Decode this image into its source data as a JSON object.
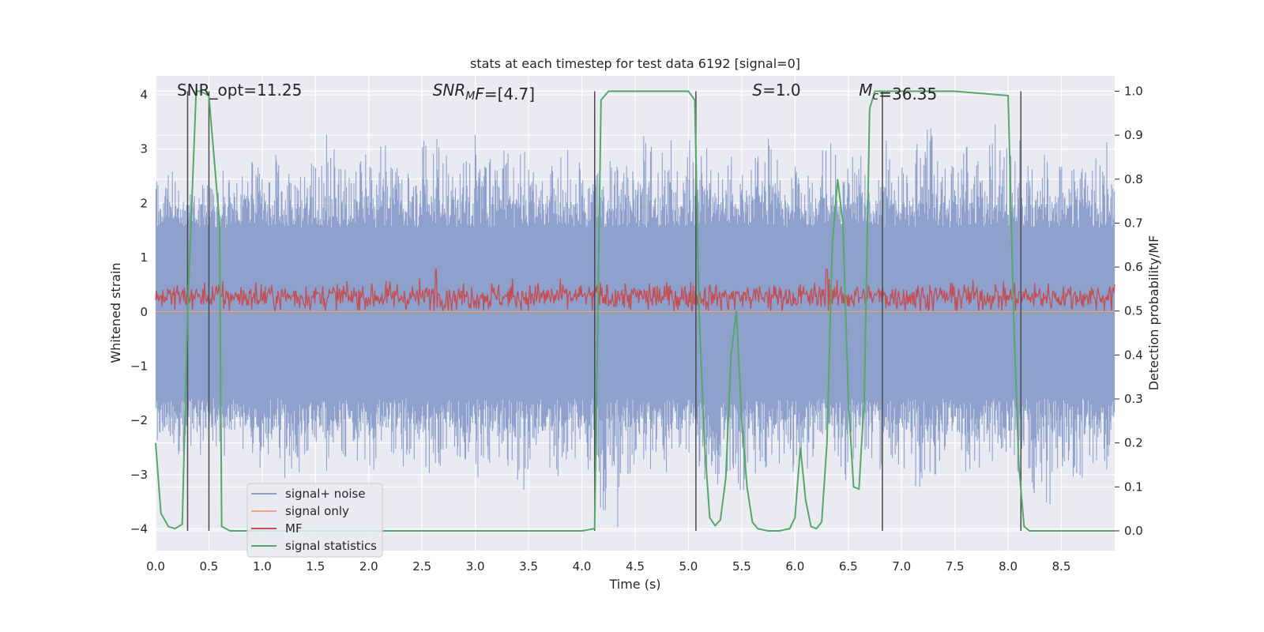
{
  "chart_data": {
    "type": "line",
    "title": "stats at each timestep for test data 6192 [signal=0]",
    "xlabel": "Time (s)",
    "ylabel_left": "Whitened strain",
    "ylabel_right": "Detection probability/MF",
    "xlim": [
      0.0,
      9.0
    ],
    "ylim_left": [
      -4.4,
      4.35
    ],
    "ylim_right": [
      -0.045,
      1.035
    ],
    "x_ticks": [
      "0.0",
      "0.5",
      "1.0",
      "1.5",
      "2.0",
      "2.5",
      "3.0",
      "3.5",
      "4.0",
      "4.5",
      "5.0",
      "5.5",
      "6.0",
      "6.5",
      "7.0",
      "7.5",
      "8.0",
      "8.5"
    ],
    "y_ticks_left": [
      "−4",
      "−3",
      "−2",
      "−1",
      "0",
      "1",
      "2",
      "3",
      "4"
    ],
    "y_ticks_right": [
      "0.0",
      "0.1",
      "0.2",
      "0.3",
      "0.4",
      "0.5",
      "0.6",
      "0.7",
      "0.8",
      "0.9",
      "1.0"
    ],
    "grid": true,
    "legend_position": "lower-left",
    "annotations": [
      {
        "x": 0.2,
        "parts": [
          {
            "text": "SNR_opt=11.25",
            "italic": false
          }
        ]
      },
      {
        "x": 2.6,
        "parts": [
          {
            "text": "SNR",
            "italic": true
          },
          {
            "text": "M",
            "italic": true,
            "sub": true
          },
          {
            "text": "F",
            "italic": true
          },
          {
            "text": "=[4.7]",
            "italic": false
          }
        ]
      },
      {
        "x": 5.6,
        "parts": [
          {
            "text": "S",
            "italic": true
          },
          {
            "text": "=1.0",
            "italic": false
          }
        ]
      },
      {
        "x": 6.6,
        "parts": [
          {
            "text": "M",
            "italic": true
          },
          {
            "text": "c",
            "italic": true,
            "sub": true
          },
          {
            "text": "=36.35",
            "italic": false
          }
        ]
      }
    ],
    "vertical_lines": [
      0.3,
      0.5,
      4.12,
      5.07,
      6.82,
      8.12
    ],
    "series": [
      {
        "name": "signal+ noise",
        "color": "#8ea1cc",
        "axis": "left",
        "envelope_positive": [
          2.4,
          2.6,
          2.3,
          2.2,
          2.5,
          2.3,
          2.7,
          2.4,
          2.6,
          2.8,
          2.5,
          3.0,
          2.6,
          2.5,
          2.9,
          2.7,
          3.3,
          2.8,
          2.6,
          3.0,
          2.7,
          3.1,
          2.8,
          2.6,
          2.9,
          3.2,
          3.6,
          2.9,
          2.7,
          2.8,
          3.4,
          2.9,
          2.7,
          3.0,
          3.1,
          2.8,
          2.6,
          2.8,
          2.9,
          3.0,
          2.8,
          2.6,
          3.1,
          2.9,
          2.7,
          2.6,
          3.3,
          2.8,
          3.3,
          2.7,
          3.3,
          3.0,
          3.2,
          2.8,
          3.0,
          2.7,
          2.9,
          3.1,
          3.3,
          2.9,
          2.8,
          2.6,
          2.7,
          3.0,
          3.3,
          2.8,
          2.9,
          2.7,
          2.6,
          3.4,
          2.8,
          2.7,
          3.3,
          3.4,
          2.9,
          2.7,
          3.2,
          2.7,
          2.8,
          3.6,
          3.1,
          3.2,
          2.8,
          2.7,
          3.0,
          2.9,
          3.1,
          2.7,
          2.6,
          2.9,
          3.2
        ],
        "envelope_negative": [
          -2.4,
          -2.6,
          -2.9,
          -2.5,
          -2.7,
          -2.6,
          -2.8,
          -2.5,
          -2.9,
          -3.1,
          -2.7,
          -2.8,
          -3.2,
          -3.0,
          -2.7,
          -2.9,
          -3.1,
          -2.8,
          -2.7,
          -2.8,
          -3.0,
          -2.6,
          -2.7,
          -2.9,
          -2.8,
          -3.0,
          -2.9,
          -2.8,
          -2.7,
          -3.0,
          -3.1,
          -2.9,
          -2.8,
          -2.9,
          -3.3,
          -3.1,
          -2.8,
          -2.9,
          -3.1,
          -2.8,
          -2.7,
          -3.0,
          -3.9,
          -4.0,
          -3.1,
          -2.9,
          -3.0,
          -2.8,
          -3.0,
          -2.9,
          -2.8,
          -2.9,
          -3.5,
          -3.2,
          -3.0,
          -3.3,
          -3.1,
          -2.9,
          -3.0,
          -2.8,
          -3.1,
          -2.9,
          -2.8,
          -3.0,
          -3.2,
          -3.1,
          -2.9,
          -2.8,
          -3.0,
          -2.8,
          -2.9,
          -3.1,
          -3.3,
          -3.0,
          -2.9,
          -2.8,
          -3.0,
          -3.1,
          -2.9,
          -2.8,
          -3.2,
          -3.1,
          -2.9,
          -3.4,
          -3.6,
          -3.0,
          -2.8,
          -3.3,
          -3.1,
          -2.9,
          -3.0
        ]
      },
      {
        "name": "signal only",
        "color": "#e8a584",
        "axis": "left",
        "values_all_zero": true
      },
      {
        "name": "MF",
        "color": "#c44e52",
        "axis": "left",
        "center": 0.28,
        "range": [
          0.0,
          1.0
        ],
        "peaks": [
          {
            "x": 2.63,
            "y": 0.8
          },
          {
            "x": 6.3,
            "y": 1.0
          }
        ]
      },
      {
        "name": "signal statistics",
        "color": "#55a868",
        "axis": "right",
        "x": [
          0.0,
          0.05,
          0.12,
          0.18,
          0.25,
          0.3,
          0.38,
          0.42,
          0.5,
          0.6,
          0.62,
          0.7,
          1.0,
          2.0,
          3.0,
          4.0,
          4.12,
          4.18,
          4.25,
          4.5,
          5.0,
          5.06,
          5.1,
          5.15,
          5.2,
          5.25,
          5.3,
          5.35,
          5.4,
          5.45,
          5.5,
          5.55,
          5.6,
          5.65,
          5.75,
          5.85,
          5.95,
          6.0,
          6.05,
          6.1,
          6.15,
          6.2,
          6.25,
          6.3,
          6.35,
          6.4,
          6.45,
          6.5,
          6.55,
          6.6,
          6.65,
          6.7,
          6.75,
          6.8,
          6.85,
          6.9,
          6.95,
          7.0,
          7.5,
          8.0,
          8.05,
          8.1,
          8.15,
          8.2,
          8.25,
          9.0
        ],
        "y": [
          0.2,
          0.04,
          0.01,
          0.005,
          0.015,
          0.5,
          1.0,
          1.0,
          0.99,
          0.7,
          0.01,
          0.0,
          0.0,
          0.0,
          0.0,
          0.0,
          0.005,
          0.98,
          1.0,
          1.0,
          1.0,
          0.98,
          0.5,
          0.2,
          0.03,
          0.012,
          0.025,
          0.12,
          0.4,
          0.5,
          0.25,
          0.1,
          0.02,
          0.005,
          0.0,
          0.0,
          0.005,
          0.03,
          0.19,
          0.07,
          0.01,
          0.005,
          0.02,
          0.2,
          0.65,
          0.8,
          0.7,
          0.3,
          0.1,
          0.095,
          0.3,
          0.96,
          1.0,
          1.0,
          1.0,
          1.0,
          1.0,
          1.0,
          1.0,
          0.99,
          0.5,
          0.15,
          0.01,
          0.0,
          0.0,
          0.0
        ]
      }
    ]
  }
}
